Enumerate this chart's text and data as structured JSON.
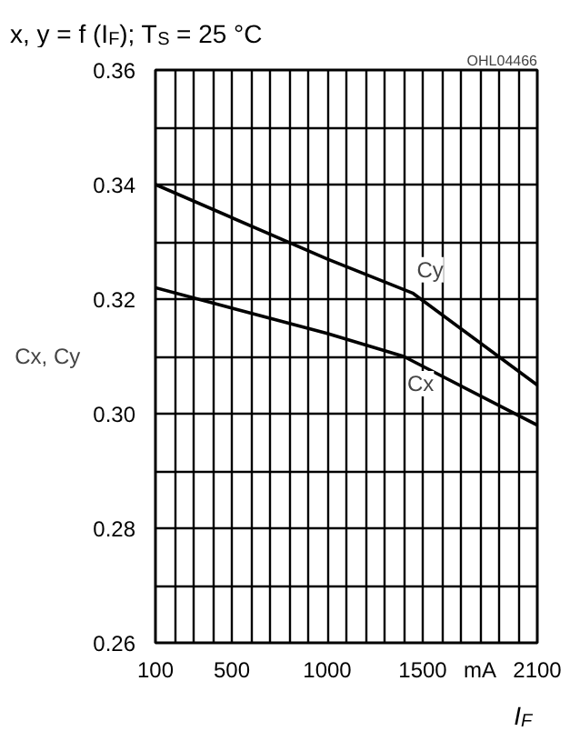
{
  "chart_data": {
    "type": "line",
    "title": "x, y = f (I$_{F}$); T$_{S}$ = 25 °C",
    "ylabel": "Cx, Cy",
    "xlabel": "I$_{F}$",
    "annotations": [
      "OHL04466"
    ],
    "xlim": [
      100,
      2100
    ],
    "xticks": [
      100,
      {
        "value": 200,
        "label": null
      },
      {
        "value": 300,
        "label": null
      },
      {
        "value": 400,
        "label": null
      },
      500,
      {
        "value": 600,
        "label": null
      },
      {
        "value": 700,
        "label": null
      },
      {
        "value": 800,
        "label": null
      },
      {
        "value": 900,
        "label": null
      },
      1000,
      {
        "value": 1100,
        "label": null
      },
      {
        "value": 1200,
        "label": null
      },
      {
        "value": 1300,
        "label": null
      },
      {
        "value": 1400,
        "label": null
      },
      1500,
      {
        "value": 1600,
        "label": null
      },
      {
        "value": 1700,
        "label": null
      },
      {
        "value": 1800,
        "label": "mA"
      },
      {
        "value": 1900,
        "label": null
      },
      {
        "value": 2000,
        "label": null
      },
      2100
    ],
    "ylim": [
      0.26,
      0.36
    ],
    "yticks": [
      {
        "value": 0.26,
        "label": "0.26"
      },
      {
        "value": 0.27,
        "label": null
      },
      {
        "value": 0.28,
        "label": "0.28"
      },
      {
        "value": 0.29,
        "label": null
      },
      {
        "value": 0.3,
        "label": "0.30"
      },
      {
        "value": 0.31,
        "label": null
      },
      {
        "value": 0.32,
        "label": "0.32"
      },
      {
        "value": 0.33,
        "label": null
      },
      {
        "value": 0.34,
        "label": "0.34"
      },
      {
        "value": 0.35,
        "label": null
      },
      {
        "value": 0.36,
        "label": "0.36"
      }
    ],
    "grid": true,
    "series": [
      {
        "name": "Cy",
        "color": "#000000",
        "x": [
          100,
          1000,
          1450,
          2100
        ],
        "values": [
          0.34,
          0.327,
          0.321,
          0.305
        ]
      },
      {
        "name": "Cx",
        "color": "#000000",
        "x": [
          100,
          1000,
          1400,
          2100
        ],
        "values": [
          0.322,
          0.314,
          0.31,
          0.298
        ]
      }
    ]
  }
}
